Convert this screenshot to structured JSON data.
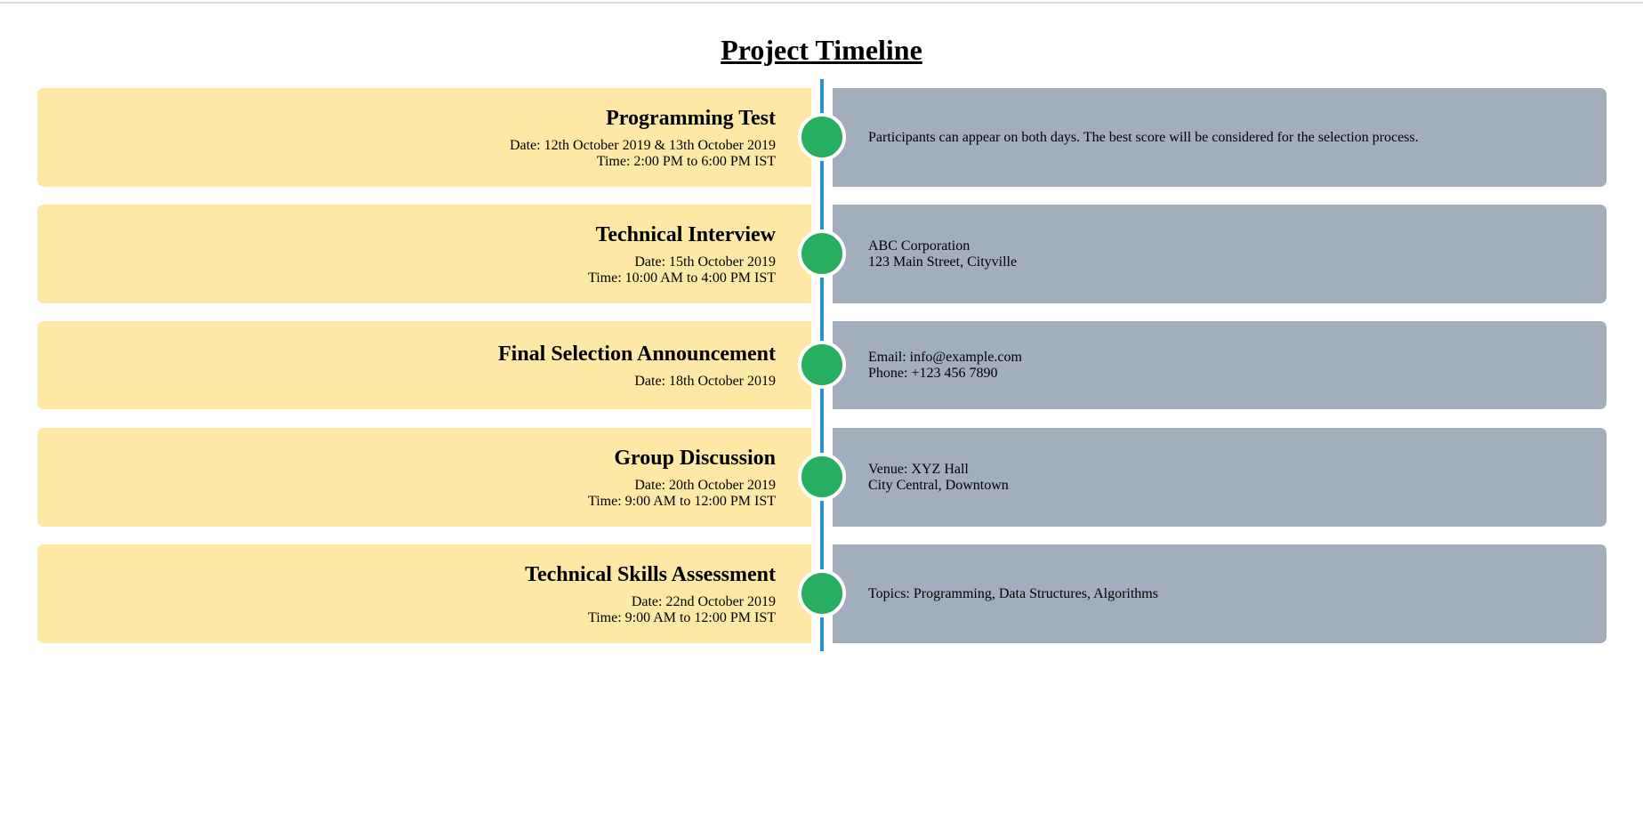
{
  "page": {
    "title": "Project Timeline"
  },
  "colors": {
    "left_card": "#fde8a5",
    "right_card": "#a3aebd",
    "dot": "#27ae60",
    "line": "#2b8fd0"
  },
  "events": [
    {
      "title": "Programming Test",
      "lines": [
        "Date: 12th October 2019 & 13th October 2019",
        "Time: 2:00 PM to 6:00 PM IST"
      ],
      "details": [
        "Participants can appear on both days. The best score will be considered for the selection process."
      ]
    },
    {
      "title": "Technical Interview",
      "lines": [
        "Date: 15th October 2019",
        "Time: 10:00 AM to 4:00 PM IST"
      ],
      "details": [
        "ABC Corporation",
        "123 Main Street, Cityville"
      ]
    },
    {
      "title": "Final Selection Announcement",
      "lines": [
        "Date: 18th October 2019"
      ],
      "details": [
        "Email: info@example.com",
        "Phone: +123 456 7890"
      ]
    },
    {
      "title": "Group Discussion",
      "lines": [
        "Date: 20th October 2019",
        "Time: 9:00 AM to 12:00 PM IST"
      ],
      "details": [
        "Venue: XYZ Hall",
        "City Central, Downtown"
      ]
    },
    {
      "title": "Technical Skills Assessment",
      "lines": [
        "Date: 22nd October 2019",
        "Time: 9:00 AM to 12:00 PM IST"
      ],
      "details": [
        "Topics: Programming, Data Structures, Algorithms"
      ]
    }
  ]
}
